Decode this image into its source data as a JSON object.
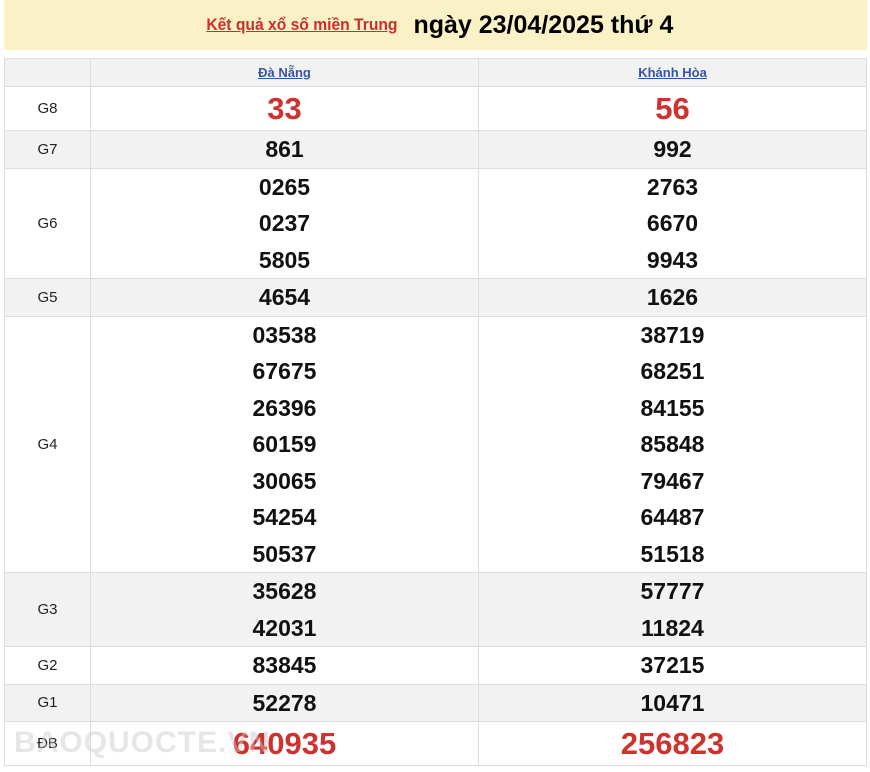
{
  "title": {
    "link": "Kết quả xổ số miền Trung",
    "date": "ngày 23/04/2025 thứ 4"
  },
  "provinces": [
    "Đà Nẵng",
    "Khánh Hòa"
  ],
  "rows": [
    {
      "label": "G8",
      "a": [
        "33"
      ],
      "b": [
        "56"
      ],
      "big": true
    },
    {
      "label": "G7",
      "a": [
        "861"
      ],
      "b": [
        "992"
      ]
    },
    {
      "label": "G6",
      "a": [
        "0265",
        "0237",
        "5805"
      ],
      "b": [
        "2763",
        "6670",
        "9943"
      ]
    },
    {
      "label": "G5",
      "a": [
        "4654"
      ],
      "b": [
        "1626"
      ]
    },
    {
      "label": "G4",
      "a": [
        "03538",
        "67675",
        "26396",
        "60159",
        "30065",
        "54254",
        "50537"
      ],
      "b": [
        "38719",
        "68251",
        "84155",
        "85848",
        "79467",
        "64487",
        "51518"
      ]
    },
    {
      "label": "G3",
      "a": [
        "35628",
        "42031"
      ],
      "b": [
        "57777",
        "11824"
      ]
    },
    {
      "label": "G2",
      "a": [
        "83845"
      ],
      "b": [
        "37215"
      ]
    },
    {
      "label": "G1",
      "a": [
        "52278"
      ],
      "b": [
        "10471"
      ]
    },
    {
      "label": "ĐB",
      "a": [
        "640935"
      ],
      "b": [
        "256823"
      ],
      "big": true
    }
  ],
  "watermark": "BAOQUOCTE.VN",
  "colors": {
    "highlight": "#d0312d",
    "banner": "#fbf1c7"
  }
}
